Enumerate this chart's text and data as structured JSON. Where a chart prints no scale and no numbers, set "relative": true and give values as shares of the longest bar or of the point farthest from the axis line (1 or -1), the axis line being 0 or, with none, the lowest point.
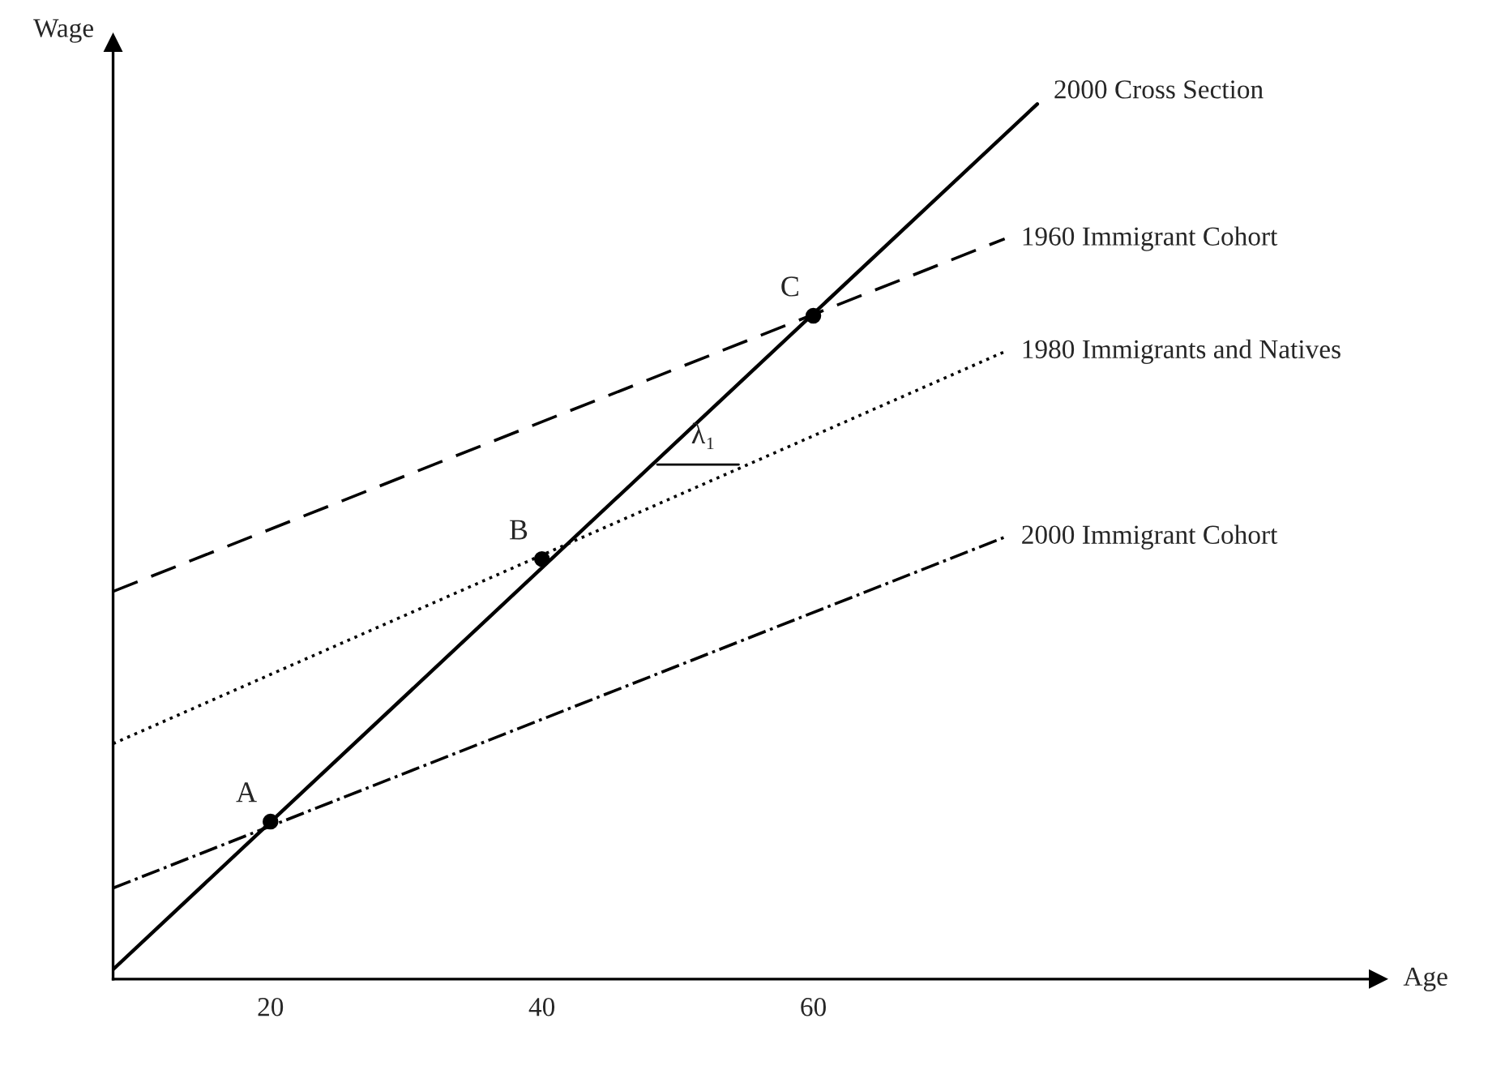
{
  "chart_data": {
    "type": "line",
    "relative": true,
    "xlabel": "Age",
    "ylabel": "Wage",
    "xlim": [
      8.4,
      101.6
    ],
    "xticks": [
      20,
      40,
      60
    ],
    "grid": false,
    "legend": false,
    "marker": "none",
    "series": [
      {
        "name": "2000 Cross Section",
        "color": "#000000",
        "line_style": "solid",
        "x": [
          8.4,
          76.5
        ],
        "values": [
          0.011,
          1.0
        ]
      },
      {
        "name": "1960 Immigrant Cohort",
        "color": "#000000",
        "line_style": "dashed",
        "x": [
          8.4,
          74.1
        ],
        "values": [
          0.443,
          0.846
        ]
      },
      {
        "name": "1980 Immigrants and Natives",
        "color": "#000000",
        "line_style": "dotted",
        "x": [
          8.4,
          74.1
        ],
        "values": [
          0.269,
          0.717
        ]
      },
      {
        "name": "2000 Immigrant Cohort",
        "color": "#000000",
        "line_style": "dashdot",
        "x": [
          8.4,
          74.1
        ],
        "values": [
          0.104,
          0.505
        ]
      },
      {
        "type": "scatter",
        "color": "#000000",
        "marker": "circle",
        "x": [
          20,
          40,
          60
        ],
        "values": [
          0.18,
          0.48,
          0.758
        ]
      }
    ],
    "annotations": [
      {
        "text": "A",
        "x": 20,
        "y": 0.18
      },
      {
        "text": "B",
        "x": 40,
        "y": 0.48
      },
      {
        "text": "C",
        "x": 60,
        "y": 0.758
      },
      {
        "text": "λ₁",
        "x": 50,
        "y": 0.6
      }
    ]
  }
}
